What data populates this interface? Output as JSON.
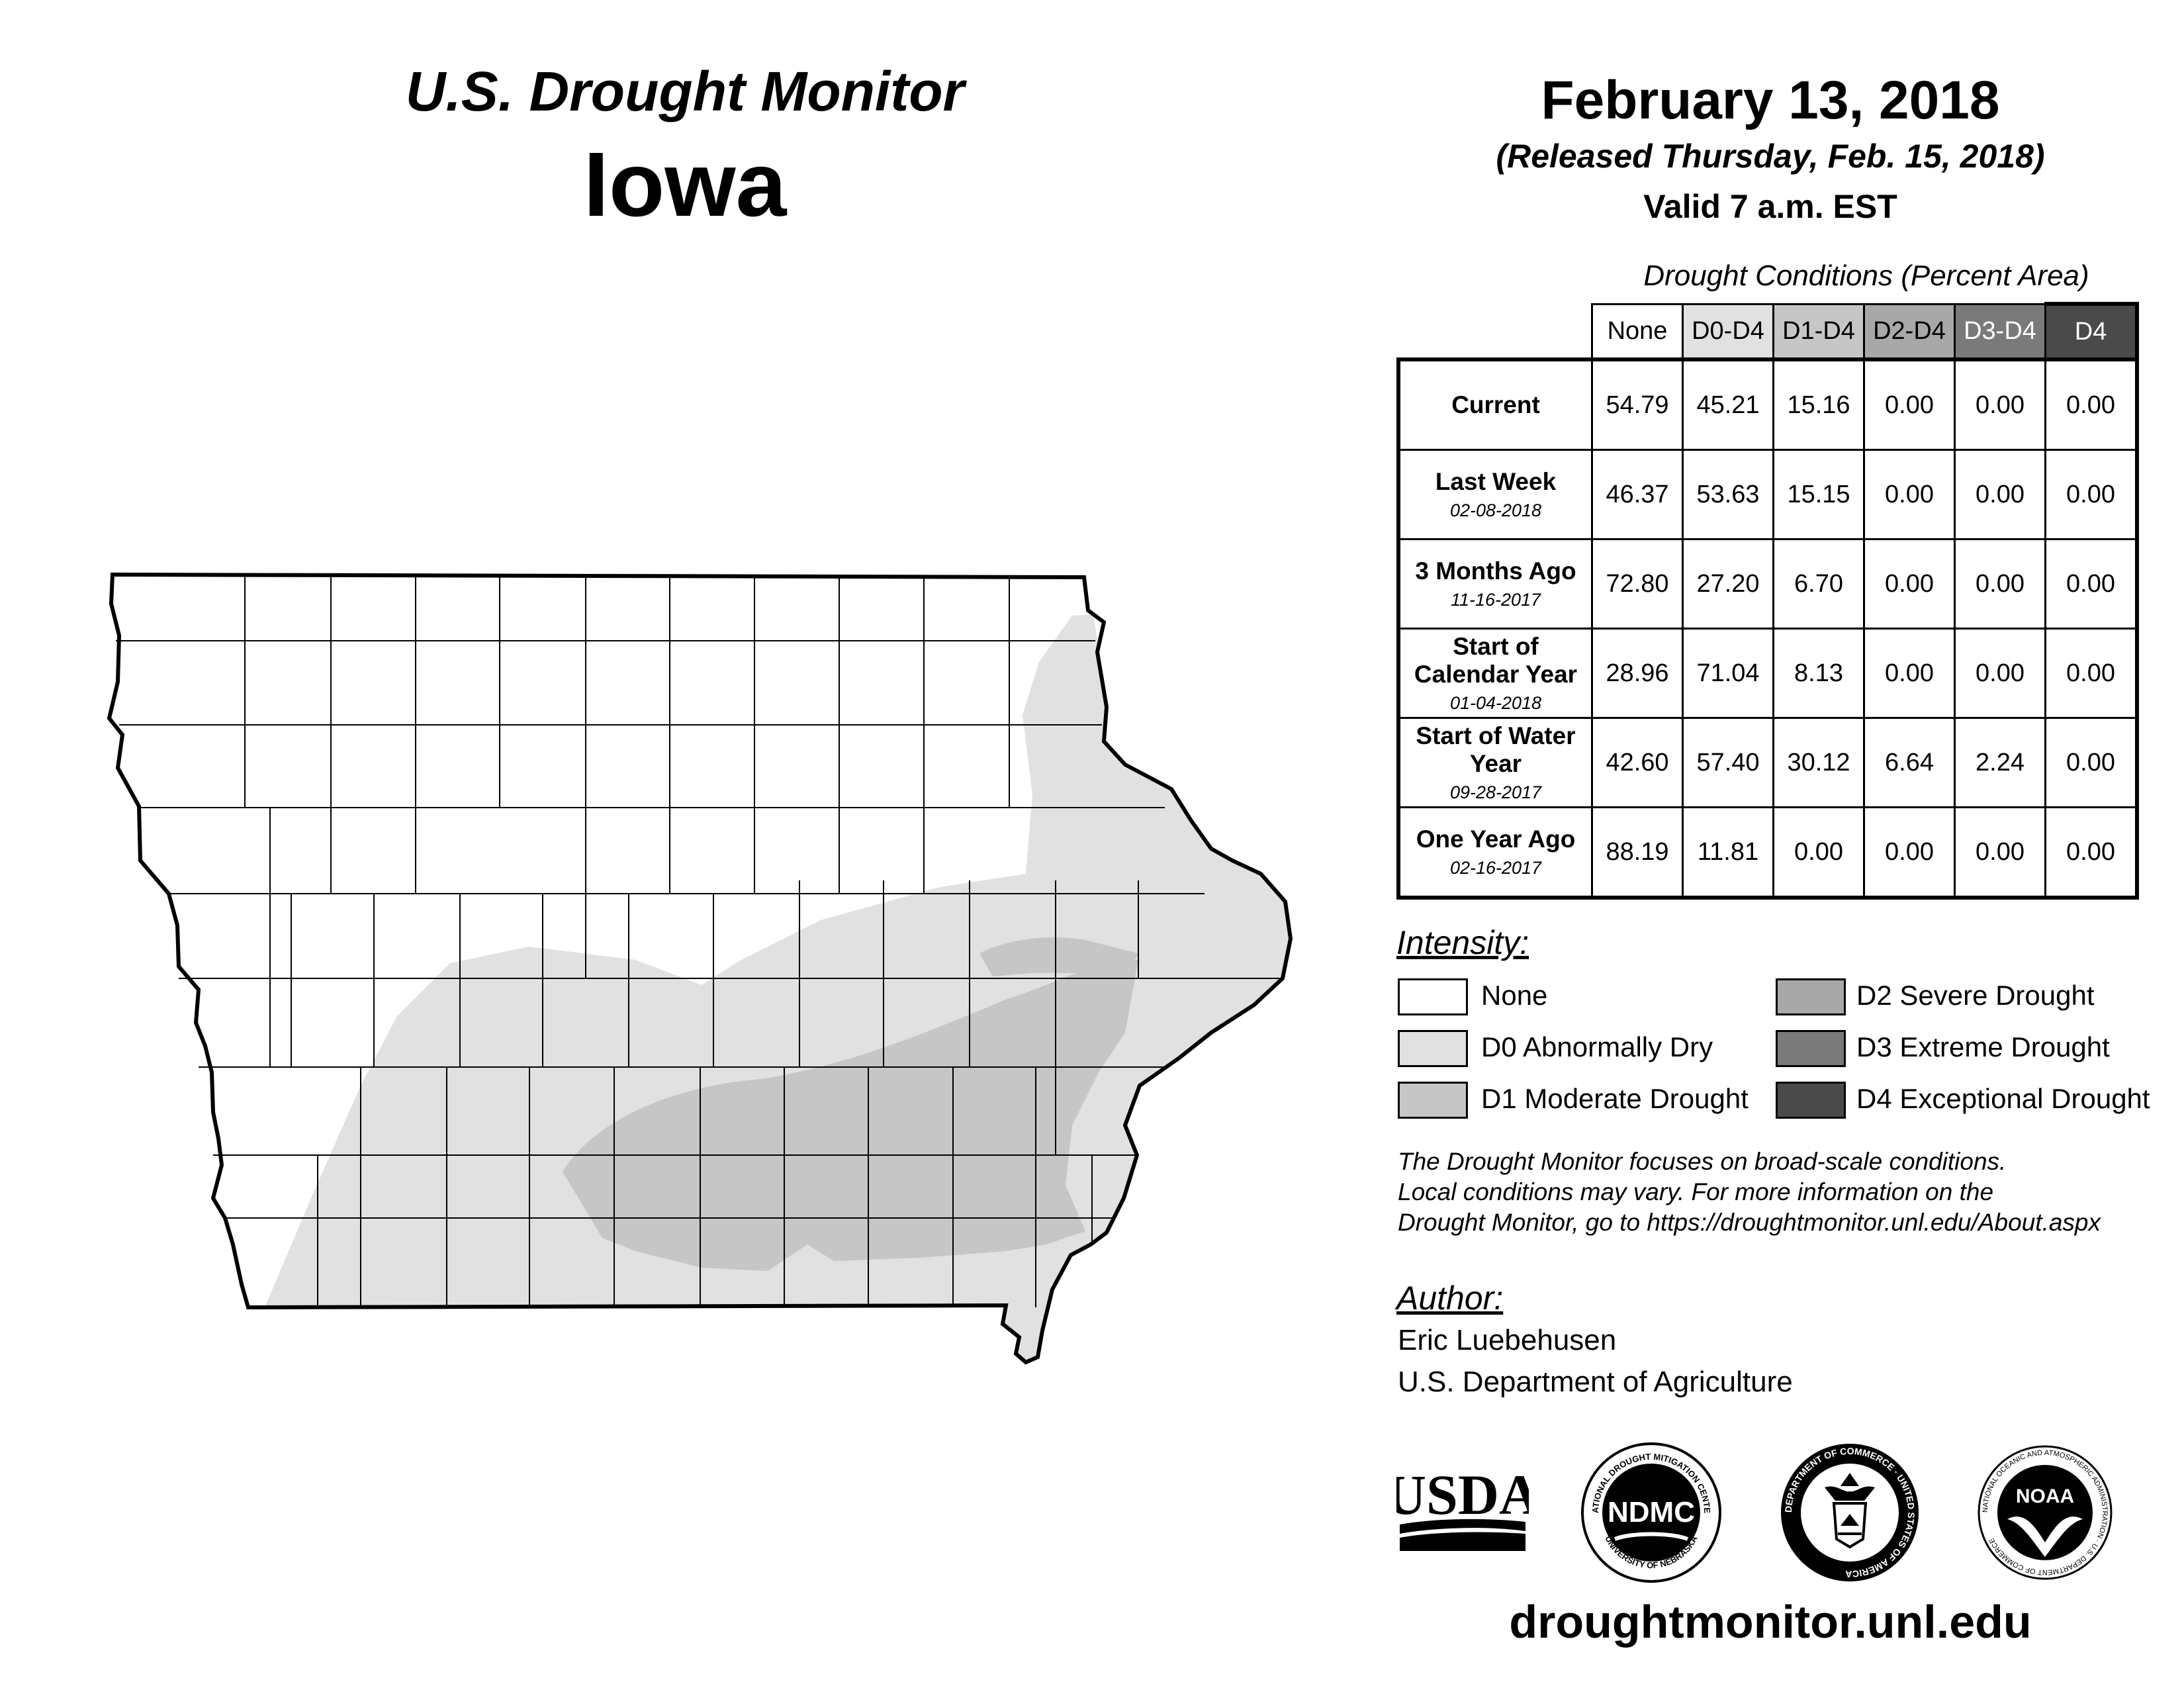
{
  "header": {
    "title": "U.S. Drought Monitor",
    "state": "Iowa",
    "date": "February 13, 2018",
    "released": "(Released Thursday, Feb. 15, 2018)",
    "valid": "Valid 7 a.m. EST"
  },
  "table": {
    "title": "Drought Conditions (Percent Area)",
    "columns": [
      "None",
      "D0-D4",
      "D1-D4",
      "D2-D4",
      "D3-D4",
      "D4"
    ],
    "rows": [
      {
        "label": "Current",
        "sub": "",
        "values": [
          "54.79",
          "45.21",
          "15.16",
          "0.00",
          "0.00",
          "0.00"
        ]
      },
      {
        "label": "Last Week",
        "sub": "02-08-2018",
        "values": [
          "46.37",
          "53.63",
          "15.15",
          "0.00",
          "0.00",
          "0.00"
        ]
      },
      {
        "label": "3 Months Ago",
        "sub": "11-16-2017",
        "values": [
          "72.80",
          "27.20",
          "6.70",
          "0.00",
          "0.00",
          "0.00"
        ]
      },
      {
        "label": "Start of Calendar Year",
        "sub": "01-04-2018",
        "values": [
          "28.96",
          "71.04",
          "8.13",
          "0.00",
          "0.00",
          "0.00"
        ]
      },
      {
        "label": "Start of Water Year",
        "sub": "09-28-2017",
        "values": [
          "42.60",
          "57.40",
          "30.12",
          "6.64",
          "2.24",
          "0.00"
        ]
      },
      {
        "label": "One Year Ago",
        "sub": "02-16-2017",
        "values": [
          "88.19",
          "11.81",
          "0.00",
          "0.00",
          "0.00",
          "0.00"
        ]
      }
    ]
  },
  "legend": {
    "title": "Intensity:",
    "items": [
      {
        "label": "None",
        "color": "#ffffff"
      },
      {
        "label": "D0 Abnormally Dry",
        "color": "#e1e1e1"
      },
      {
        "label": "D1 Moderate Drought",
        "color": "#c6c6c6"
      },
      {
        "label": "D2 Severe Drought",
        "color": "#a8a8a8"
      },
      {
        "label": "D3 Extreme Drought",
        "color": "#7a7a7a"
      },
      {
        "label": "D4 Exceptional Drought",
        "color": "#4a4a4a"
      }
    ]
  },
  "column_colors": [
    "#ffffff",
    "#e1e1e1",
    "#c6c6c6",
    "#a8a8a8",
    "#7a7a7a",
    "#4a4a4a"
  ],
  "disclaimer": {
    "line1": "The Drought Monitor focuses on broad-scale conditions.",
    "line2": "Local conditions may vary. For more information on the",
    "line3": "Drought Monitor, go to https://droughtmonitor.unl.edu/About.aspx"
  },
  "author": {
    "title": "Author:",
    "name": "Eric Luebehusen",
    "org": "U.S. Department of Agriculture"
  },
  "logos": {
    "usda": "USDA",
    "ndmc": "NDMC",
    "ndmc_ring_top": "NATIONAL DROUGHT MITIGATION CENTER",
    "ndmc_ring_bottom": "UNIVERSITY OF NEBRASKA",
    "doc_ring": "DEPARTMENT OF COMMERCE · UNITED STATES OF AMERICA",
    "noaa": "NOAA",
    "noaa_ring": "NATIONAL OCEANIC AND ATMOSPHERIC ADMINISTRATION · U.S. DEPARTMENT OF COMMERCE"
  },
  "website": "droughtmonitor.unl.edu"
}
